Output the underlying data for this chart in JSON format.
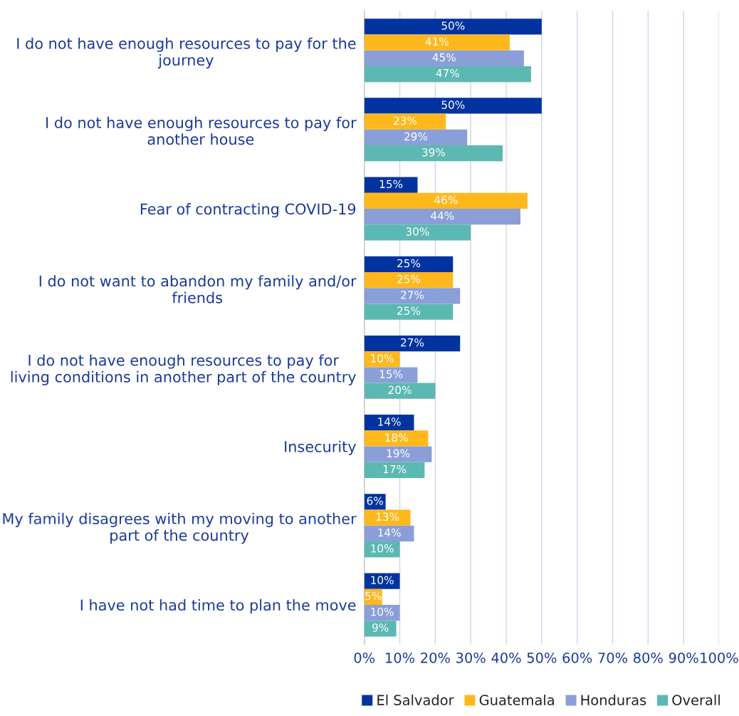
{
  "chart_data": {
    "type": "bar",
    "orientation": "horizontal",
    "categories": [
      "I do not have enough resources to pay for the journey",
      "I do not have enough resources to pay for another house",
      "Fear of contracting COVID-19",
      "I do not want to abandon my family and/or friends",
      "I do not have enough resources to pay for living conditions in another part of the country",
      "Insecurity",
      "My family disagrees with my moving to another part of the country",
      "I have not had time to plan the move"
    ],
    "series": [
      {
        "name": "El Salvador",
        "color": "#0033a0",
        "values": [
          50,
          50,
          15,
          25,
          27,
          14,
          6,
          10
        ],
        "value_labels": [
          "50%",
          "50%",
          "15%",
          "25%",
          "27%",
          "14%",
          "6%",
          "10%"
        ]
      },
      {
        "name": "Guatemala",
        "color": "#ffb81c",
        "values": [
          41,
          23,
          46,
          25,
          10,
          18,
          13,
          5
        ],
        "value_labels": [
          "41%",
          "23%",
          "46%",
          "25%",
          "10%",
          "18%",
          "13%",
          "5%"
        ]
      },
      {
        "name": "Honduras",
        "color": "#8a9fd8",
        "values": [
          45,
          29,
          44,
          27,
          15,
          19,
          14,
          10
        ],
        "value_labels": [
          "45%",
          "29%",
          "44%",
          "27%",
          "15%",
          "19%",
          "14%",
          "10%"
        ]
      },
      {
        "name": "Overall",
        "color": "#5cb8b2",
        "values": [
          47,
          39,
          30,
          25,
          20,
          17,
          10,
          9
        ],
        "value_labels": [
          "47%",
          "39%",
          "30%",
          "25%",
          "20%",
          "17%",
          "10%",
          "9%"
        ]
      }
    ],
    "xlim": [
      0,
      100
    ],
    "xticks": [
      {
        "value": 0,
        "label": "0%"
      },
      {
        "value": 10,
        "label": "10%"
      },
      {
        "value": 20,
        "label": "20%"
      },
      {
        "value": 30,
        "label": "30%"
      },
      {
        "value": 40,
        "label": "40%"
      },
      {
        "value": 50,
        "label": "50%"
      },
      {
        "value": 60,
        "label": "60%"
      },
      {
        "value": 70,
        "label": "70%"
      },
      {
        "value": 80,
        "label": "80%"
      },
      {
        "value": 90,
        "label": "90%"
      },
      {
        "value": 100,
        "label": "100%"
      }
    ],
    "grid": "x",
    "legend": "bottom"
  }
}
